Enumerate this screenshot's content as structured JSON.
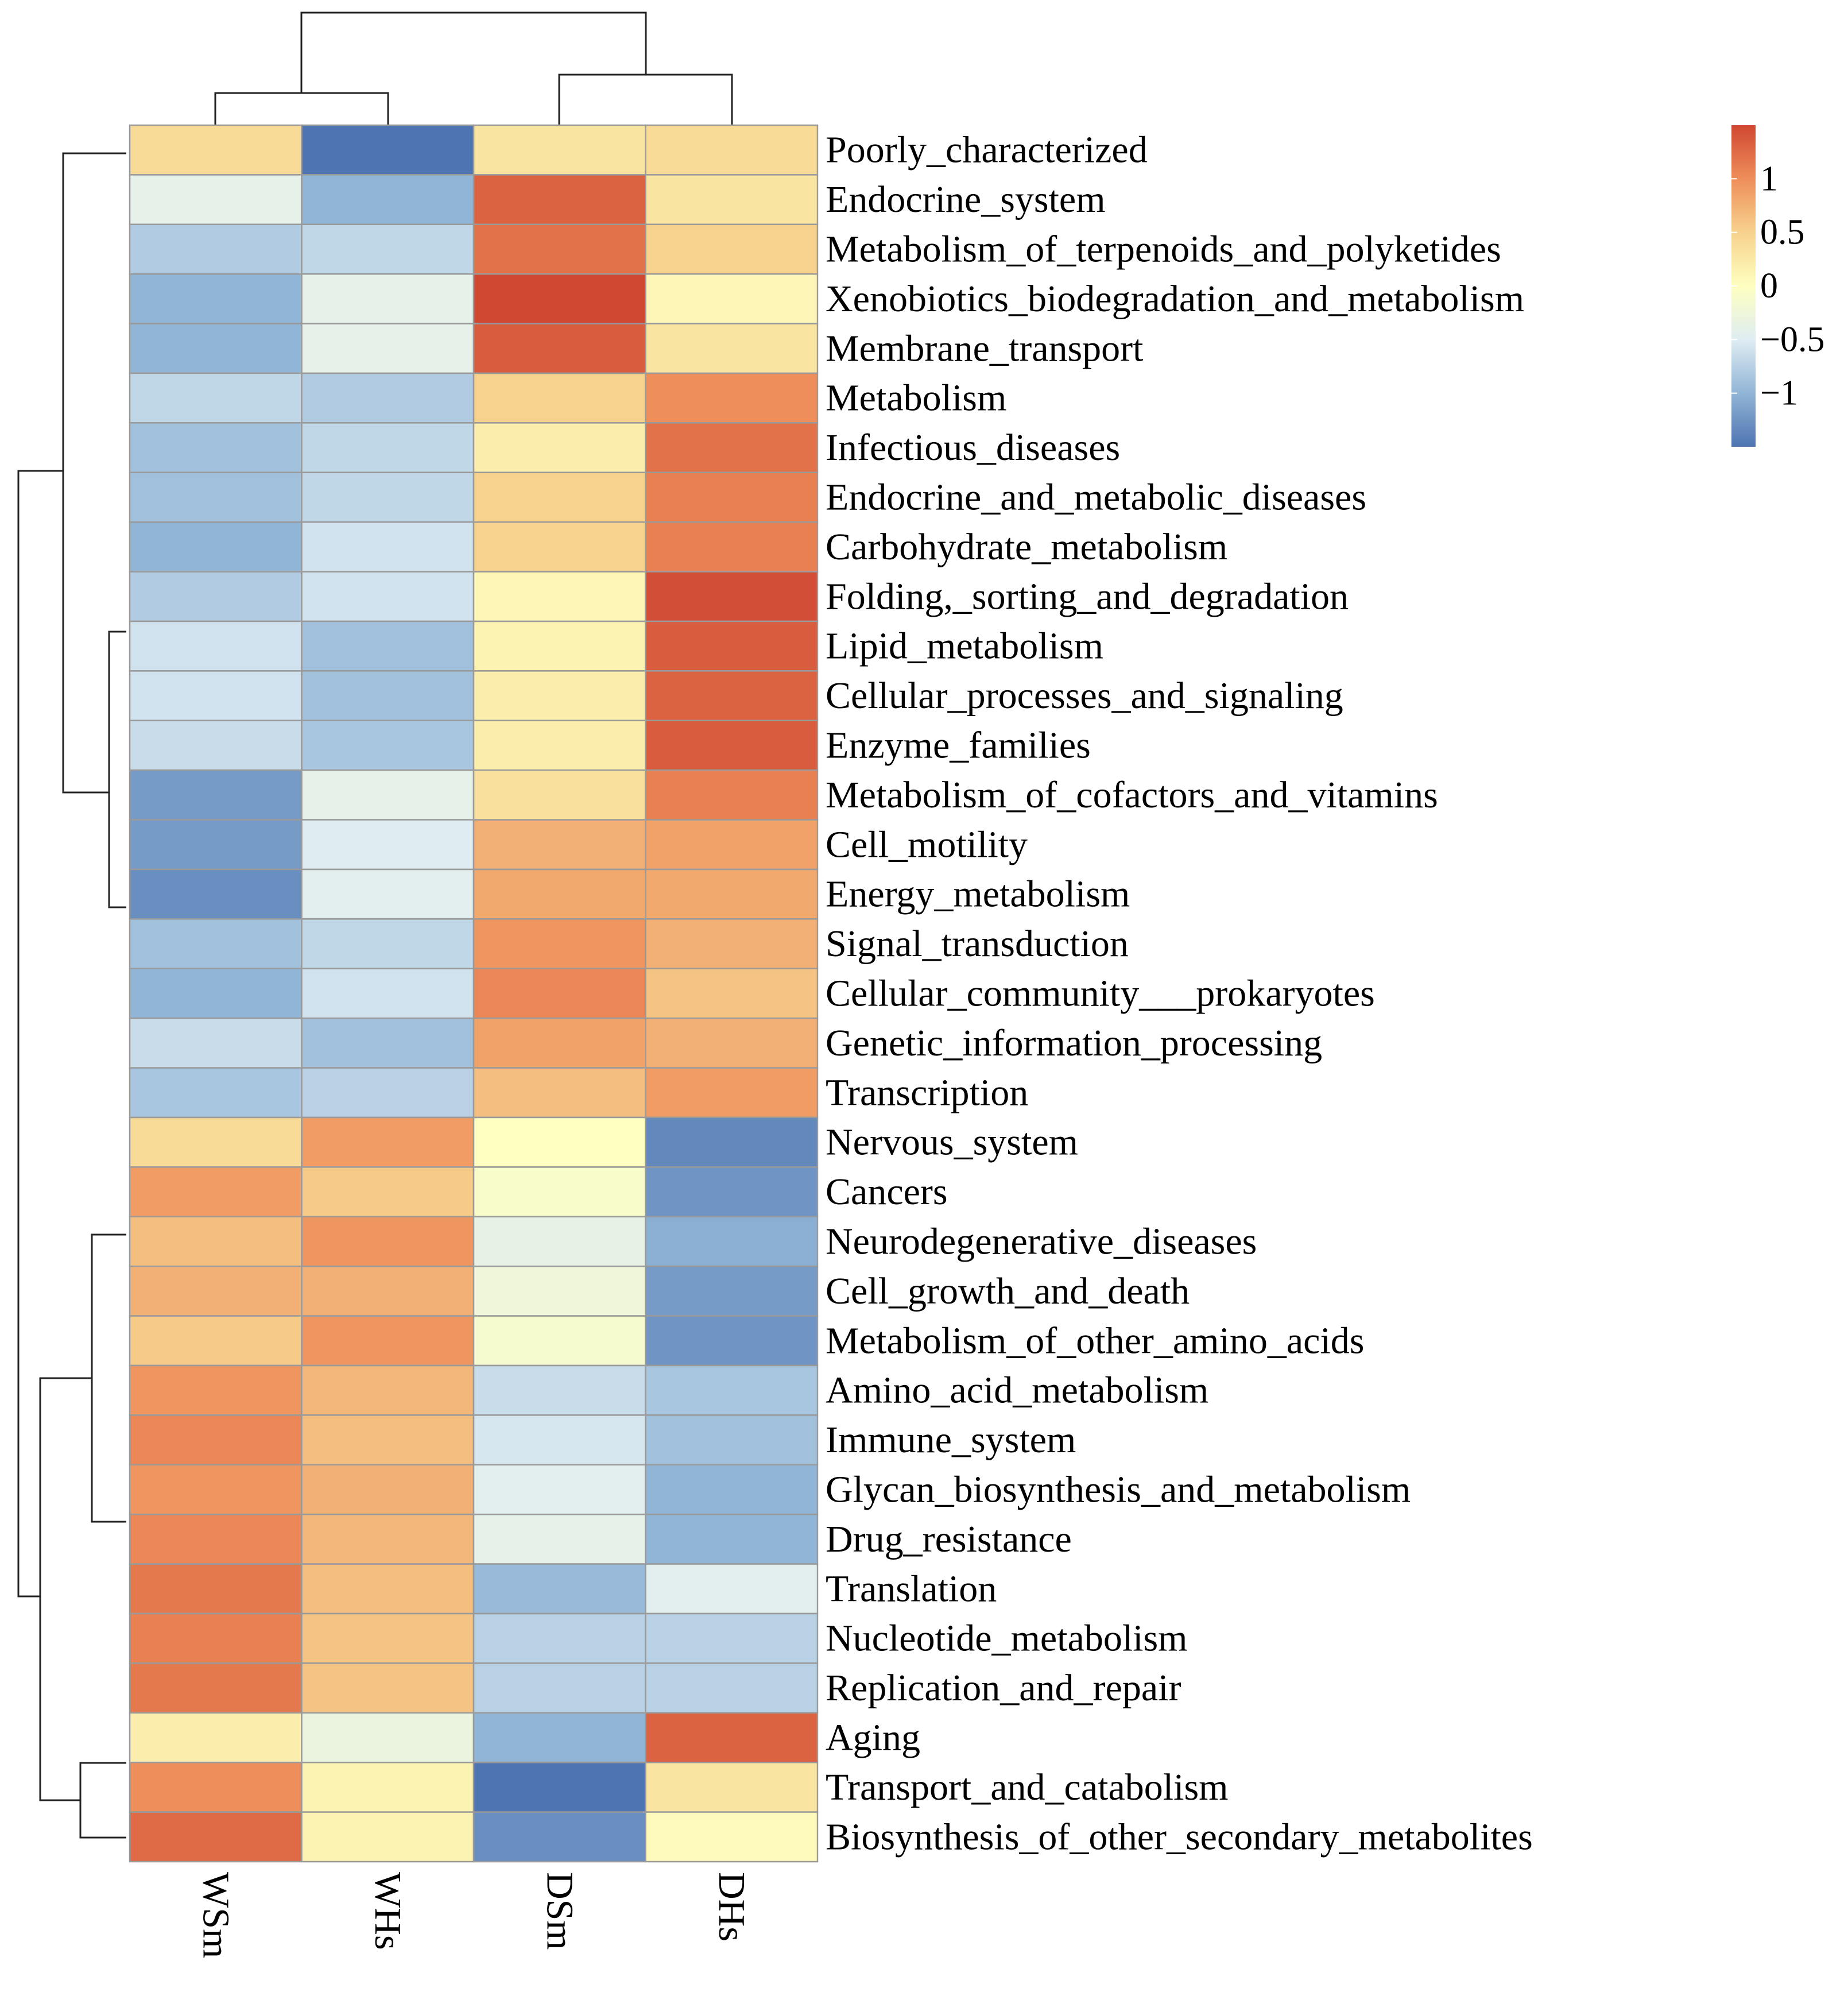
{
  "chart_data": {
    "type": "heatmap",
    "title": "",
    "columns": [
      "WSm",
      "WHs",
      "DSm",
      "DHs"
    ],
    "rows": [
      "Poorly_characterized",
      "Endocrine_system",
      "Metabolism_of_terpenoids_and_polyketides",
      "Xenobiotics_biodegradation_and_metabolism",
      "Membrane_transport",
      "Metabolism",
      "Infectious_diseases",
      "Endocrine_and_metabolic_diseases",
      "Carbohydrate_metabolism",
      "Folding,_sorting_and_degradation",
      "Lipid_metabolism",
      "Cellular_processes_and_signaling",
      "Enzyme_families",
      "Metabolism_of_cofactors_and_vitamins",
      "Cell_motility",
      "Energy_metabolism",
      "Signal_transduction",
      "Cellular_community___prokaryotes",
      "Genetic_information_processing",
      "Transcription",
      "Nervous_system",
      "Cancers",
      "Neurodegenerative_diseases",
      "Cell_growth_and_death",
      "Metabolism_of_other_amino_acids",
      "Amino_acid_metabolism",
      "Immune_system",
      "Glycan_biosynthesis_and_metabolism",
      "Drug_resistance",
      "Translation",
      "Nucleotide_metabolism",
      "Replication_and_repair",
      "Aging",
      "Transport_and_catabolism",
      "Biosynthesis_of_other_secondary_metabolites"
    ],
    "values": [
      [
        0.4,
        -1.5,
        0.3,
        0.4
      ],
      [
        -0.4,
        -1.0,
        1.3,
        0.3
      ],
      [
        -0.8,
        -0.7,
        1.2,
        0.5
      ],
      [
        -1.0,
        -0.4,
        1.5,
        0.1
      ],
      [
        -1.0,
        -0.4,
        1.35,
        0.3
      ],
      [
        -0.7,
        -0.8,
        0.5,
        1.0
      ],
      [
        -0.9,
        -0.7,
        0.2,
        1.2
      ],
      [
        -0.9,
        -0.7,
        0.5,
        1.1
      ],
      [
        -1.0,
        -0.6,
        0.5,
        1.1
      ],
      [
        -0.8,
        -0.6,
        0.1,
        1.45
      ],
      [
        -0.6,
        -0.9,
        0.15,
        1.35
      ],
      [
        -0.6,
        -0.9,
        0.2,
        1.3
      ],
      [
        -0.65,
        -0.85,
        0.2,
        1.35
      ],
      [
        -1.2,
        -0.4,
        0.35,
        1.1
      ],
      [
        -1.2,
        -0.5,
        0.75,
        0.85
      ],
      [
        -1.3,
        -0.45,
        0.8,
        0.8
      ],
      [
        -0.9,
        -0.7,
        0.95,
        0.75
      ],
      [
        -1.0,
        -0.6,
        1.05,
        0.6
      ],
      [
        -0.65,
        -0.9,
        0.85,
        0.75
      ],
      [
        -0.85,
        -0.75,
        0.65,
        0.9
      ],
      [
        0.4,
        0.9,
        0.0,
        -1.35
      ],
      [
        0.9,
        0.55,
        -0.1,
        -1.25
      ],
      [
        0.65,
        0.95,
        -0.35,
        -1.05
      ],
      [
        0.75,
        0.75,
        -0.25,
        -1.2
      ],
      [
        0.55,
        0.95,
        -0.15,
        -1.25
      ],
      [
        0.95,
        0.7,
        -0.65,
        -0.85
      ],
      [
        1.05,
        0.65,
        -0.55,
        -0.9
      ],
      [
        0.95,
        0.75,
        -0.45,
        -1.0
      ],
      [
        1.05,
        0.7,
        -0.4,
        -1.0
      ],
      [
        1.15,
        0.65,
        -0.95,
        -0.45
      ],
      [
        1.1,
        0.6,
        -0.75,
        -0.75
      ],
      [
        1.15,
        0.6,
        -0.75,
        -0.75
      ],
      [
        0.2,
        -0.3,
        -1.0,
        1.3
      ],
      [
        1.0,
        0.15,
        -1.5,
        0.3
      ],
      [
        1.25,
        0.15,
        -1.3,
        0.05
      ]
    ],
    "color_scale": {
      "min": -1.5,
      "max": 1.5,
      "stops": [
        "#4e74b1",
        "#91b5d6",
        "#dfedf3",
        "#feffc0",
        "#f7d28d",
        "#ee8e5a",
        "#d04732"
      ]
    },
    "legend": {
      "position": "top-right",
      "ticks": [
        1,
        0.5,
        0,
        -0.5,
        -1
      ],
      "tick_labels": [
        "1",
        "0.5",
        "0",
        "−0.5",
        "−1"
      ]
    },
    "row_dendrogram": true,
    "column_dendrogram": true
  }
}
